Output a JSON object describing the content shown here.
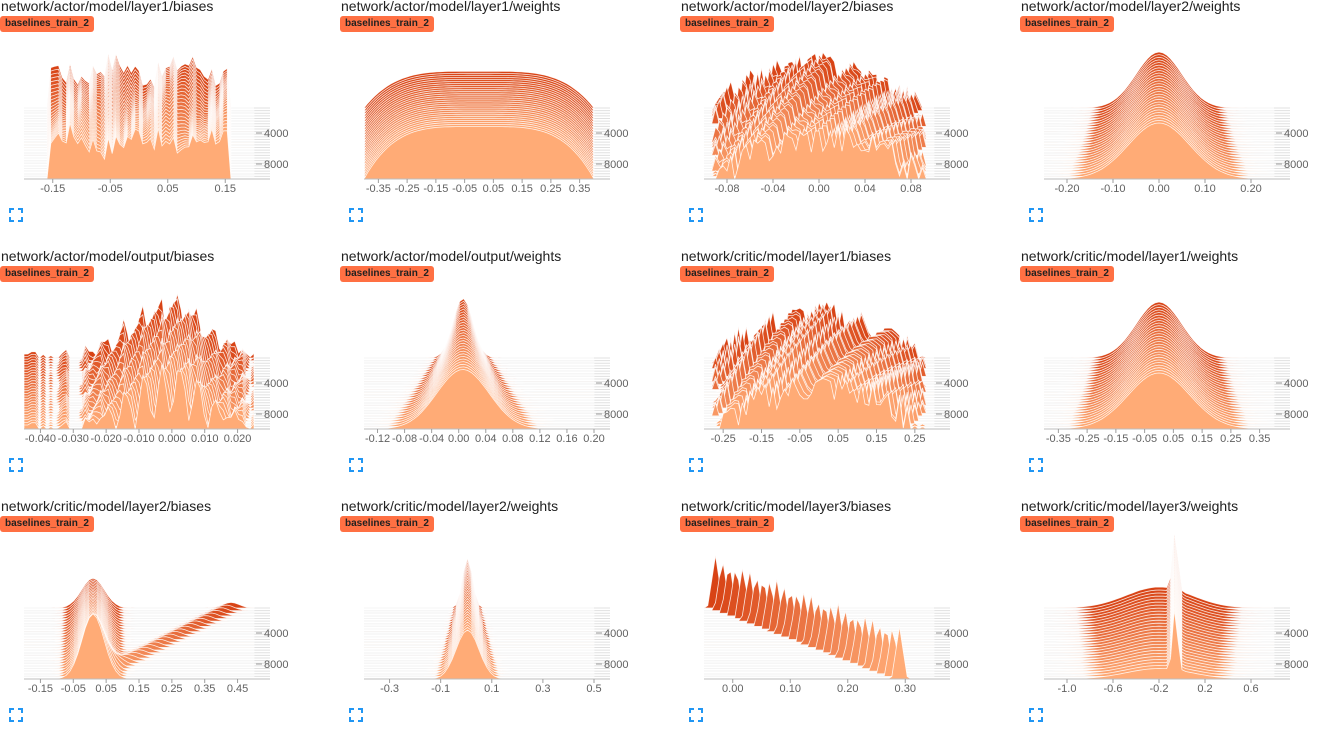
{
  "run_label": "baselines_train_2",
  "colors": {
    "badge": "#ff7043",
    "back_slice": "#d84315",
    "front_slice": "#ffab76",
    "outline": "#ffffff",
    "ticks": "#616161",
    "expand_icon": "#2196f3"
  },
  "step_ticks": [
    "4000",
    "8000"
  ],
  "charts": [
    {
      "title": "network/actor/model/layer1/biases",
      "chart_data": {
        "type": "histogram",
        "x_ticks": [
          "-0.15",
          "-0.05",
          "0.05",
          "0.15"
        ],
        "step_ticks": [
          4000,
          8000
        ],
        "shape": "wide",
        "x_range": [
          -0.2,
          0.2
        ]
      }
    },
    {
      "title": "network/actor/model/layer1/weights",
      "chart_data": {
        "type": "histogram",
        "x_ticks": [
          "-0.35",
          "-0.25",
          "-0.15",
          "-0.05",
          "0.05",
          "0.15",
          "0.25",
          "0.35"
        ],
        "step_ticks": [
          4000,
          8000
        ],
        "shape": "plateau",
        "x_range": [
          -0.4,
          0.4
        ]
      }
    },
    {
      "title": "network/actor/model/layer2/biases",
      "chart_data": {
        "type": "histogram",
        "x_ticks": [
          "-0.08",
          "-0.04",
          "0.00",
          "0.04",
          "0.08"
        ],
        "step_ticks": [
          4000,
          8000
        ],
        "shape": "noisy",
        "x_range": [
          -0.1,
          0.1
        ]
      }
    },
    {
      "title": "network/actor/model/layer2/weights",
      "chart_data": {
        "type": "histogram",
        "x_ticks": [
          "-0.20",
          "-0.10",
          "0.00",
          "0.10",
          "0.20"
        ],
        "step_ticks": [
          4000,
          8000
        ],
        "shape": "bell",
        "x_range": [
          -0.25,
          0.25
        ]
      }
    },
    {
      "title": "network/actor/model/output/biases",
      "chart_data": {
        "type": "histogram",
        "x_ticks": [
          "-0.040",
          "-0.030",
          "-0.020",
          "-0.010",
          "0.000",
          "0.010",
          "0.020"
        ],
        "step_ticks": [
          4000,
          8000
        ],
        "shape": "spiky",
        "x_range": [
          -0.045,
          0.025
        ]
      }
    },
    {
      "title": "network/actor/model/output/weights",
      "chart_data": {
        "type": "histogram",
        "x_ticks": [
          "-0.12",
          "-0.08",
          "-0.04",
          "0.00",
          "0.04",
          "0.08",
          "0.12",
          "0.16",
          "0.20"
        ],
        "step_ticks": [
          4000,
          8000
        ],
        "shape": "peak",
        "x_range": [
          -0.14,
          0.2
        ]
      }
    },
    {
      "title": "network/critic/model/layer1/biases",
      "chart_data": {
        "type": "histogram",
        "x_ticks": [
          "-0.25",
          "-0.15",
          "-0.05",
          "0.05",
          "0.15",
          "0.25"
        ],
        "step_ticks": [
          4000,
          8000
        ],
        "shape": "noisy",
        "x_range": [
          -0.3,
          0.3
        ]
      }
    },
    {
      "title": "network/critic/model/layer1/weights",
      "chart_data": {
        "type": "histogram",
        "x_ticks": [
          "-0.35",
          "-0.25",
          "-0.15",
          "-0.05",
          "0.05",
          "0.15",
          "0.25",
          "0.35"
        ],
        "step_ticks": [
          4000,
          8000
        ],
        "shape": "bell",
        "x_range": [
          -0.4,
          0.4
        ]
      }
    },
    {
      "title": "network/critic/model/layer2/biases",
      "chart_data": {
        "type": "histogram",
        "x_ticks": [
          "-0.15",
          "-0.05",
          "0.05",
          "0.15",
          "0.25",
          "0.35",
          "0.45"
        ],
        "step_ticks": [
          4000,
          8000
        ],
        "shape": "skew_left",
        "x_range": [
          -0.2,
          0.5
        ]
      }
    },
    {
      "title": "network/critic/model/layer2/weights",
      "chart_data": {
        "type": "histogram",
        "x_ticks": [
          "-0.3",
          "-0.1",
          "0.1",
          "0.3",
          "0.5"
        ],
        "step_ticks": [
          4000,
          8000
        ],
        "shape": "narrow",
        "x_range": [
          -0.4,
          0.5
        ]
      }
    },
    {
      "title": "network/critic/model/layer3/biases",
      "chart_data": {
        "type": "histogram",
        "x_ticks": [
          "0.00",
          "0.10",
          "0.20",
          "0.30"
        ],
        "step_ticks": [
          4000,
          8000
        ],
        "shape": "drift",
        "x_range": [
          -0.05,
          0.35
        ]
      }
    },
    {
      "title": "network/critic/model/layer3/weights",
      "chart_data": {
        "type": "histogram",
        "x_ticks": [
          "-1.0",
          "-0.6",
          "-0.2",
          "0.2",
          "0.6"
        ],
        "step_ticks": [
          4000,
          8000
        ],
        "shape": "sharp",
        "x_range": [
          -1.2,
          0.8
        ]
      }
    }
  ]
}
